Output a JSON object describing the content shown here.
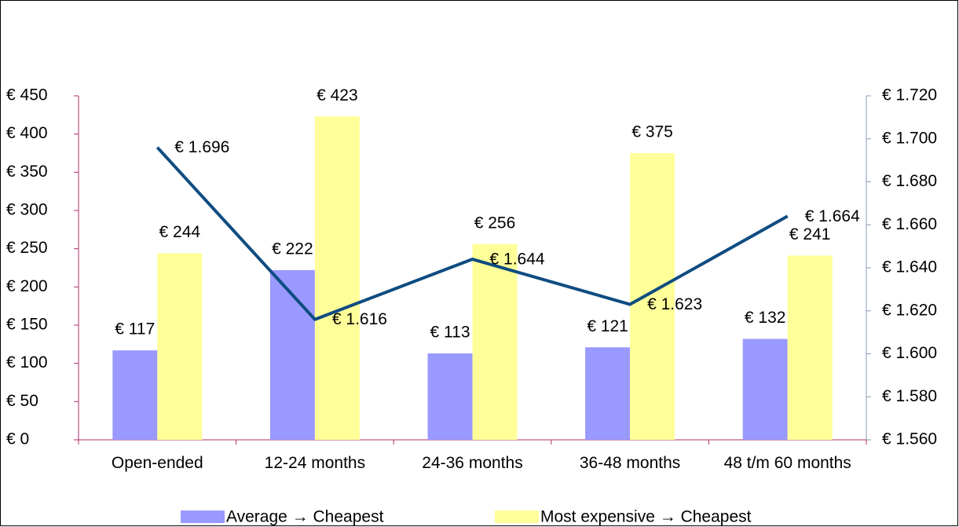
{
  "chart_data": {
    "type": "bar",
    "categories": [
      "Open-ended",
      "12-24 months",
      "24-36 months",
      "36-48 months",
      "48 t/m 60 months"
    ],
    "series": [
      {
        "name": "Average → Cheapest",
        "color": "#9999ff",
        "values": [
          117,
          222,
          113,
          121,
          132
        ],
        "value_labels": [
          "€ 117",
          "€ 222",
          "€ 113",
          "€ 121",
          "€ 132"
        ]
      },
      {
        "name": "Most expensive → Cheapest",
        "color": "#ffff99",
        "values": [
          244,
          423,
          256,
          375,
          241
        ],
        "value_labels": [
          "€ 244",
          "€ 423",
          "€ 256",
          "€ 375",
          "€ 241"
        ]
      },
      {
        "type": "line",
        "axis": "y2",
        "color": "#0f4c81",
        "values": [
          1696,
          1616,
          1644,
          1623,
          1664
        ],
        "value_labels": [
          "€ 1.696",
          "€ 1.616",
          "€ 1.644",
          "€ 1.623",
          "€ 1.664"
        ]
      }
    ],
    "ylim": [
      0,
      450
    ],
    "yticks": [
      {
        "value": 0,
        "label": "€ 0"
      },
      {
        "value": 50,
        "label": "€ 50"
      },
      {
        "value": 100,
        "label": "€ 100"
      },
      {
        "value": 150,
        "label": "€ 150"
      },
      {
        "value": 200,
        "label": "€ 200"
      },
      {
        "value": 250,
        "label": "€ 250"
      },
      {
        "value": 300,
        "label": "€ 300"
      },
      {
        "value": 350,
        "label": "€ 350"
      },
      {
        "value": 400,
        "label": "€ 400"
      },
      {
        "value": 450,
        "label": "€ 450"
      }
    ],
    "y2lim": [
      1560,
      1720
    ],
    "y2ticks": [
      {
        "value": 1560,
        "label": "€ 1.560"
      },
      {
        "value": 1580,
        "label": "€ 1.580"
      },
      {
        "value": 1600,
        "label": "€ 1.600"
      },
      {
        "value": 1620,
        "label": "€ 1.620"
      },
      {
        "value": 1640,
        "label": "€ 1.640"
      },
      {
        "value": 1660,
        "label": "€ 1.660"
      },
      {
        "value": 1680,
        "label": "€ 1.680"
      },
      {
        "value": 1700,
        "label": "€ 1.700"
      },
      {
        "value": 1720,
        "label": "€ 1.720"
      }
    ],
    "legend": "bottom",
    "grid": false
  }
}
